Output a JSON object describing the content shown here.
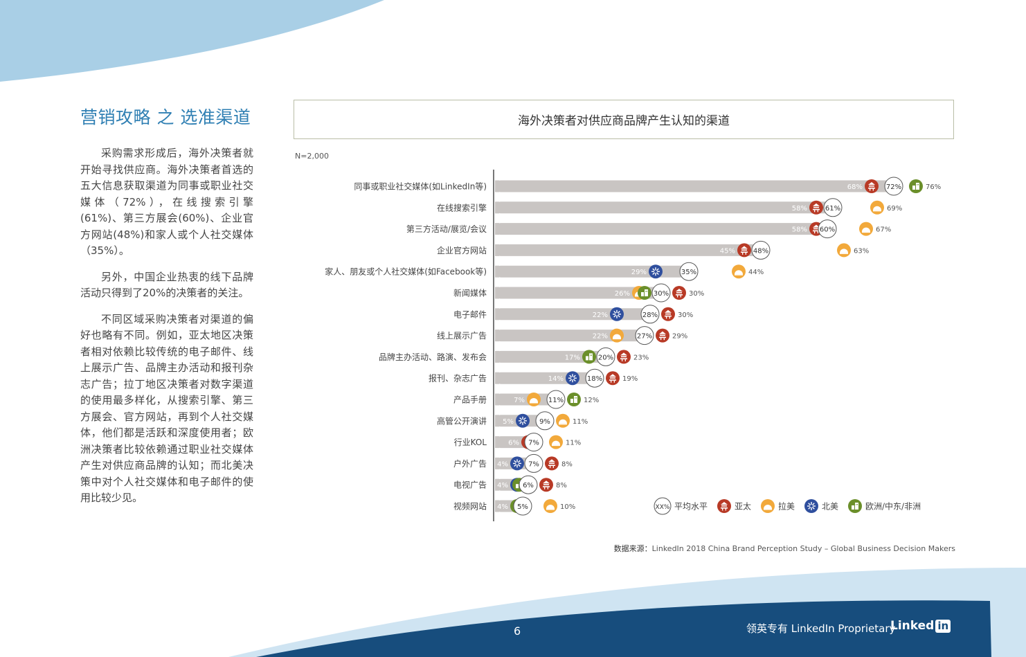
{
  "page": {
    "section_title": "营销攻略 之 选准渠道",
    "paragraphs": [
      "采购需求形成后，海外决策者就开始寻找供应商。海外决策者首选的五大信息获取渠道为同事或职业社交媒体（72%），在线搜索引擎(61%)、第三方展会(60%)、企业官方网站(48%)和家人或个人社交媒体（35%）。",
      "另外，中国企业热衷的线下品牌活动只得到了20%的决策者的关注。",
      "不同区域采购决策者对渠道的偏好也略有不同。例如，亚太地区决策者相对依赖比较传统的电子邮件、线上展示广告、品牌主办活动和报刊杂志广告；拉丁地区决策者对数字渠道的使用最多样化，从搜索引擎、第三方展会、官方网站，再到个人社交媒体，他们都是活跃和深度使用者；欧洲决策者比较依赖通过职业社交媒体产生对供应商品牌的认知；而北美决策中对个人社交媒体和电子邮件的使用比较少见。"
    ],
    "page_number": "6",
    "footer_text": "领英专有 LinkedIn Proprietary",
    "logo_text": "Linked",
    "logo_in": "in"
  },
  "chart": {
    "title": "海外决策者对供应商品牌产生认知的渠道",
    "n_label": "N=2,000",
    "source_label": "数据来源：",
    "source_text": "LinkedIn 2018 China Brand Perception Study – Global Business Decision Makers"
  },
  "colors": {
    "apac": "#b83a26",
    "latam": "#f2a93b",
    "na": "#2f4f9e",
    "emea": "#6b8f2a",
    "bar": "#c9c5c3",
    "bar_text": "#ffffff",
    "accent_blue": "#2f7fb3",
    "footer_blue": "#174d7d",
    "light_blue": "#a9cfe6"
  },
  "chart_data": {
    "type": "bar",
    "orientation": "horizontal",
    "unit": "%",
    "legend": [
      {
        "key": "avg",
        "label": "平均水平",
        "symbol": "XX%"
      },
      {
        "key": "apac",
        "label": "亚太",
        "icon": "pagoda-icon"
      },
      {
        "key": "latam",
        "label": "拉美",
        "icon": "sun-icon"
      },
      {
        "key": "na",
        "label": "北美",
        "icon": "liberty-icon"
      },
      {
        "key": "emea",
        "label": "欧洲/中东/非洲",
        "icon": "building-icon"
      }
    ],
    "categories": [
      "同事或职业社交媒体(如LinkedIn等)",
      "在线搜索引擎",
      "第三方活动/展览/会议",
      "企业官方网站",
      "家人、朋友或个人社交媒体(如Facebook等)",
      "新闻媒体",
      "电子邮件",
      "线上展示广告",
      "品牌主办活动、路演、发布会",
      "报刊、杂志广告",
      "产品手册",
      "高管公开演讲",
      "行业KOL",
      "户外广告",
      "电视广告",
      "视频网站"
    ],
    "rows": [
      {
        "avg": 72,
        "min": {
          "region": "apac",
          "value": 68
        },
        "max": {
          "region": "emea",
          "value": 76
        }
      },
      {
        "avg": 61,
        "min": {
          "region": "apac",
          "value": 58
        },
        "max": {
          "region": "latam",
          "value": 69
        }
      },
      {
        "avg": 60,
        "min": {
          "region": "apac",
          "value": 58
        },
        "max": {
          "region": "latam",
          "value": 67
        }
      },
      {
        "avg": 48,
        "min": {
          "region": "apac",
          "value": 45
        },
        "max": {
          "region": "latam",
          "value": 63
        }
      },
      {
        "avg": 35,
        "min": {
          "region": "na",
          "value": 29
        },
        "max": {
          "region": "latam",
          "value": 44
        }
      },
      {
        "avg": 30,
        "min": {
          "region": "latam",
          "value": 26
        },
        "max": {
          "region": "apac",
          "value": 30
        },
        "extra": {
          "region": "emea",
          "value": 30
        }
      },
      {
        "avg": 28,
        "min": {
          "region": "na",
          "value": 22
        },
        "max": {
          "region": "apac",
          "value": 30
        }
      },
      {
        "avg": 27,
        "min": {
          "region": "latam",
          "value": 22
        },
        "max": {
          "region": "apac",
          "value": 29
        }
      },
      {
        "avg": 20,
        "min": {
          "region": "emea",
          "value": 17
        },
        "max": {
          "region": "apac",
          "value": 23
        }
      },
      {
        "avg": 18,
        "min": {
          "region": "na",
          "value": 14
        },
        "max": {
          "region": "apac",
          "value": 19
        }
      },
      {
        "avg": 11,
        "min": {
          "region": "latam",
          "value": 7
        },
        "max": {
          "region": "emea",
          "value": 12
        }
      },
      {
        "avg": 9,
        "min": {
          "region": "na",
          "value": 5
        },
        "max": {
          "region": "latam",
          "value": 11
        }
      },
      {
        "avg": 7,
        "min": {
          "region": "apac",
          "value": 6
        },
        "max": {
          "region": "latam",
          "value": 11
        }
      },
      {
        "avg": 7,
        "min": {
          "region": "na",
          "value": 4
        },
        "max": {
          "region": "apac",
          "value": 8
        }
      },
      {
        "avg": 6,
        "min": {
          "region": "na",
          "value": 4
        },
        "max": {
          "region": "apac",
          "value": 8
        },
        "extra": {
          "region": "emea",
          "value": 4
        }
      },
      {
        "avg": 5,
        "min": {
          "region": "emea",
          "value": 4
        },
        "max": {
          "region": "latam",
          "value": 10
        }
      }
    ]
  }
}
